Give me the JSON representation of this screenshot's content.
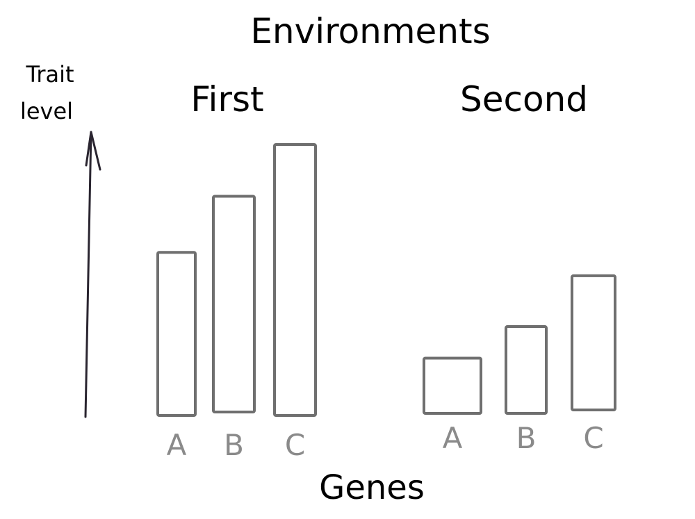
{
  "chart_data": {
    "type": "bar",
    "title": "Environments",
    "xlabel": "Genes",
    "ylabel": [
      "Trait",
      "level"
    ],
    "categories": [
      "A",
      "B",
      "C"
    ],
    "groups": [
      {
        "name": "First",
        "values": [
          6.2,
          8.2,
          10.3
        ]
      },
      {
        "name": "Second",
        "values": [
          2.1,
          3.3,
          5.1
        ]
      }
    ],
    "ylim": [
      0,
      11
    ],
    "grid": false,
    "legend": "none",
    "colors": {
      "bar_stroke": "#6f6f6f",
      "axis": "#2a2530",
      "text": "#000000",
      "tick_text": "#8a8a8a"
    }
  }
}
